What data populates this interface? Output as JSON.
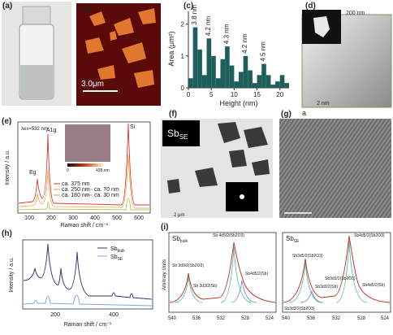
{
  "panels": {
    "a": {
      "label": "(a)"
    },
    "b": {
      "label": "(b)",
      "scale_bar": "3.0μm"
    },
    "c": {
      "label": "(c)"
    },
    "d": {
      "label": "(d)",
      "inset_scale": "200 nm",
      "scale": "2 nm",
      "corner_label": "a"
    },
    "e": {
      "label": "(e)",
      "excitation": "λex=532 nm",
      "peak_a": "A1g",
      "peak_e": "Eg",
      "peak_si": "Si",
      "legend": [
        "ca. 375 nm",
        "ca. 250 nm",
        "ca. 180 nm",
        "ca. 70 nm",
        "ca. 30 nm"
      ],
      "inset_min": "0",
      "inset_max": "438 nm",
      "ylabel": "Intensity / a.u.",
      "xticks": [
        "100",
        "200",
        "300",
        "400",
        "500",
        "600"
      ],
      "xlabel": "Raman shift / cm⁻¹"
    },
    "f": {
      "label": "(f)",
      "title": {
        "base": "Sb",
        "sub": "SE"
      },
      "scale": "2 μm"
    },
    "g": {
      "label": "(g)"
    },
    "h": {
      "label": "(h)",
      "legend": [
        {
          "base": "Sb",
          "sub": "bulk"
        },
        {
          "base": "Sb",
          "sub": "SE"
        }
      ],
      "ylabel": "Intensity / a.u.",
      "xticks": [
        "200",
        "400"
      ],
      "xlabel": "Raman shift / cm⁻¹"
    },
    "i": {
      "label": "(i)",
      "ylabel": "Arbitrary Units",
      "left": {
        "title": {
          "base": "Sb",
          "sub": "bulk"
        },
        "peaks": [
          "Sb 4d5/2(Sb2O3)",
          "Sb 3d3/2(Sb2O3)",
          "Sb 3d3/2(Sb)",
          "Sb4d5/2(Sb)"
        ],
        "xticks": [
          "540",
          "536",
          "532",
          "528",
          "524"
        ]
      },
      "right": {
        "title": {
          "base": "Sb",
          "sub": "SE"
        },
        "peaks": [
          "Sb4d5/2(Sb2O3)",
          "Sb3d5/2(Sb2O3)",
          "Sb3d3/2(Sb2O3)",
          "Sb3d3/2(Sb)",
          "Sb4d5/2(Sb)",
          "Sb3d3/2(Sb2O3)"
        ],
        "xticks": [
          "540",
          "536",
          "532",
          "528",
          "524"
        ]
      }
    }
  },
  "chart_data": {
    "type": "bar",
    "xlabel": "Height (nm)",
    "ylabel": "Area (μm²)",
    "color": "#1f5f5b",
    "x": [
      0,
      1,
      2,
      3,
      4,
      5,
      6,
      7,
      8,
      9,
      10,
      11,
      12,
      13,
      14,
      15,
      16,
      17,
      18,
      19,
      20,
      21
    ],
    "values": [
      0.3,
      1.9,
      1.2,
      0.4,
      1.55,
      1.0,
      0.3,
      0.9,
      1.3,
      0.7,
      0.2,
      0.5,
      1.0,
      0.55,
      0.15,
      0.4,
      0.75,
      0.4,
      0.1,
      0.2,
      0.4,
      0.15
    ],
    "xlim": [
      0,
      22
    ],
    "ylim": [
      0,
      2.4
    ],
    "xticks": [
      0,
      5,
      10,
      15,
      20
    ],
    "yticks": [
      0,
      1,
      2
    ],
    "annotations": [
      "3.8 nm",
      "4.2 nm",
      "4.3 nm",
      "4.2 nm",
      "4.5 nm"
    ]
  }
}
